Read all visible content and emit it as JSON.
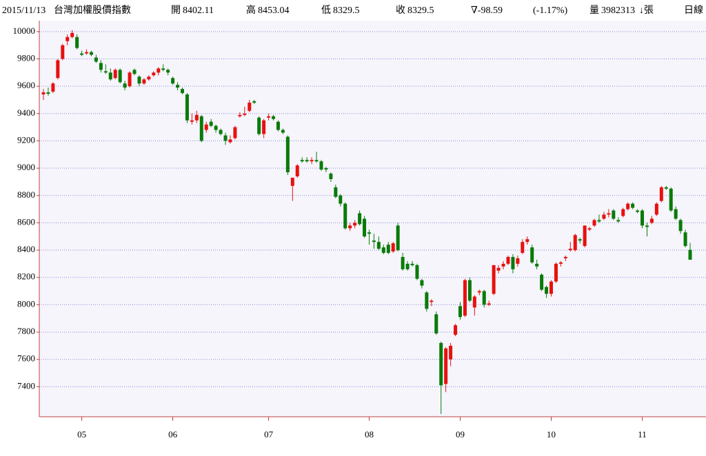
{
  "chart_data": {
    "type": "candlestick",
    "date": "2015/11/13",
    "title": "台灣加權股價指數",
    "stats": [
      {
        "label": "開",
        "value": 8402.11,
        "color": "#007000"
      },
      {
        "label": "高",
        "value": 8453.04,
        "color": "#e00000"
      },
      {
        "label": "低",
        "value": 8329.5,
        "color": "#007000"
      },
      {
        "label": "收",
        "value": 8329.5,
        "color": "#007000"
      }
    ],
    "change": "∇-98.59",
    "change_color": "#007000",
    "change_pct": "(-1.17%)",
    "volume_label": "量",
    "volume": 3982313,
    "volume_unit": "↓張",
    "period": "日線",
    "up_color": "#e81010",
    "down_color": "#0a7a0a",
    "grid": true,
    "ylim": [
      7180,
      10080
    ],
    "yticks": [
      7400,
      7600,
      7800,
      8000,
      8200,
      8400,
      8600,
      8800,
      9000,
      9200,
      9400,
      9600,
      9800,
      10000
    ],
    "xticks": [
      {
        "index": 8,
        "label": "05"
      },
      {
        "index": 27,
        "label": "06"
      },
      {
        "index": 47,
        "label": "07"
      },
      {
        "index": 68,
        "label": "08"
      },
      {
        "index": 87,
        "label": "09"
      },
      {
        "index": 106,
        "label": "10"
      },
      {
        "index": 125,
        "label": "11"
      }
    ],
    "candles": [
      [
        9540,
        9580,
        9500,
        9555
      ],
      [
        9555,
        9590,
        9530,
        9545
      ],
      [
        9560,
        9630,
        9550,
        9620
      ],
      [
        9660,
        9800,
        9650,
        9790
      ],
      [
        9800,
        9910,
        9790,
        9900
      ],
      [
        9930,
        9980,
        9900,
        9960
      ],
      [
        9960,
        10010,
        9950,
        9990
      ],
      [
        9960,
        9980,
        9870,
        9880
      ],
      [
        9840,
        9860,
        9820,
        9830
      ],
      [
        9840,
        9870,
        9830,
        9850
      ],
      [
        9850,
        9860,
        9820,
        9830
      ],
      [
        9810,
        9830,
        9770,
        9780
      ],
      [
        9770,
        9790,
        9700,
        9720
      ],
      [
        9710,
        9760,
        9690,
        9700
      ],
      [
        9700,
        9730,
        9640,
        9650
      ],
      [
        9660,
        9730,
        9650,
        9720
      ],
      [
        9720,
        9730,
        9620,
        9630
      ],
      [
        9620,
        9640,
        9570,
        9590
      ],
      [
        9600,
        9710,
        9590,
        9700
      ],
      [
        9720,
        9730,
        9680,
        9690
      ],
      [
        9670,
        9680,
        9600,
        9620
      ],
      [
        9620,
        9660,
        9610,
        9650
      ],
      [
        9650,
        9680,
        9640,
        9670
      ],
      [
        9680,
        9710,
        9670,
        9700
      ],
      [
        9700,
        9740,
        9680,
        9730
      ],
      [
        9730,
        9760,
        9710,
        9720
      ],
      [
        9720,
        9730,
        9680,
        9700
      ],
      [
        9660,
        9670,
        9610,
        9620
      ],
      [
        9610,
        9630,
        9570,
        9590
      ],
      [
        9580,
        9590,
        9540,
        9550
      ],
      [
        9540,
        9550,
        9330,
        9350
      ],
      [
        9340,
        9400,
        9320,
        9350
      ],
      [
        9350,
        9420,
        9330,
        9390
      ],
      [
        9380,
        9390,
        9190,
        9200
      ],
      [
        9280,
        9340,
        9260,
        9320
      ],
      [
        9340,
        9360,
        9300,
        9310
      ],
      [
        9310,
        9320,
        9260,
        9280
      ],
      [
        9280,
        9290,
        9240,
        9250
      ],
      [
        9240,
        9260,
        9170,
        9200
      ],
      [
        9190,
        9240,
        9180,
        9210
      ],
      [
        9220,
        9310,
        9210,
        9300
      ],
      [
        9380,
        9410,
        9370,
        9390
      ],
      [
        9390,
        9450,
        9380,
        9400
      ],
      [
        9420,
        9500,
        9410,
        9480
      ],
      [
        9490,
        9500,
        9470,
        9480
      ],
      [
        9370,
        9380,
        9240,
        9250
      ],
      [
        9250,
        9360,
        9220,
        9350
      ],
      [
        9370,
        9400,
        9350,
        9380
      ],
      [
        9380,
        9390,
        9350,
        9360
      ],
      [
        9340,
        9350,
        9270,
        9280
      ],
      [
        9280,
        9290,
        9250,
        9260
      ],
      [
        9230,
        9240,
        8950,
        8970
      ],
      [
        8870,
        8930,
        8760,
        8930
      ],
      [
        8940,
        9030,
        8930,
        9020
      ],
      [
        9060,
        9080,
        9040,
        9050
      ],
      [
        9060,
        9080,
        9040,
        9050
      ],
      [
        9050,
        9080,
        9030,
        9060
      ],
      [
        9060,
        9120,
        9040,
        9050
      ],
      [
        9050,
        9060,
        8980,
        8990
      ],
      [
        9000,
        9010,
        8970,
        8990
      ],
      [
        8960,
        8970,
        8900,
        8920
      ],
      [
        8860,
        8880,
        8780,
        8790
      ],
      [
        8800,
        8810,
        8720,
        8740
      ],
      [
        8740,
        8750,
        8550,
        8560
      ],
      [
        8560,
        8600,
        8540,
        8580
      ],
      [
        8580,
        8620,
        8560,
        8600
      ],
      [
        8670,
        8690,
        8580,
        8590
      ],
      [
        8630,
        8650,
        8490,
        8500
      ],
      [
        8530,
        8550,
        8440,
        8520
      ],
      [
        8470,
        8520,
        8410,
        8460
      ],
      [
        8460,
        8500,
        8400,
        8410
      ],
      [
        8420,
        8440,
        8370,
        8380
      ],
      [
        8440,
        8460,
        8370,
        8380
      ],
      [
        8390,
        8460,
        8380,
        8450
      ],
      [
        8580,
        8600,
        8390,
        8400
      ],
      [
        8350,
        8380,
        8250,
        8260
      ],
      [
        8300,
        8320,
        8250,
        8260
      ],
      [
        8300,
        8320,
        8280,
        8290
      ],
      [
        8290,
        8300,
        8180,
        8190
      ],
      [
        8180,
        8190,
        8120,
        8140
      ],
      [
        8090,
        8100,
        7950,
        7970
      ],
      [
        8020,
        8040,
        7990,
        8030
      ],
      [
        7930,
        7950,
        7780,
        7790
      ],
      [
        7720,
        7730,
        7200,
        7410
      ],
      [
        7420,
        7690,
        7360,
        7680
      ],
      [
        7600,
        7720,
        7550,
        7700
      ],
      [
        7780,
        7860,
        7770,
        7850
      ],
      [
        7990,
        8020,
        7890,
        7910
      ],
      [
        7920,
        8190,
        7910,
        8180
      ],
      [
        8180,
        8200,
        8020,
        8030
      ],
      [
        7980,
        8070,
        7920,
        8060
      ],
      [
        8090,
        8110,
        8070,
        8100
      ],
      [
        8100,
        8110,
        7980,
        8000
      ],
      [
        8000,
        8030,
        7990,
        8010
      ],
      [
        8080,
        8290,
        8070,
        8290
      ],
      [
        8250,
        8290,
        8230,
        8270
      ],
      [
        8280,
        8320,
        8260,
        8300
      ],
      [
        8300,
        8360,
        8290,
        8350
      ],
      [
        8350,
        8370,
        8230,
        8260
      ],
      [
        8300,
        8360,
        8280,
        8340
      ],
      [
        8380,
        8480,
        8370,
        8460
      ],
      [
        8460,
        8500,
        8440,
        8480
      ],
      [
        8420,
        8440,
        8300,
        8310
      ],
      [
        8300,
        8330,
        8260,
        8280
      ],
      [
        8220,
        8230,
        8100,
        8110
      ],
      [
        8130,
        8140,
        8050,
        8080
      ],
      [
        8080,
        8180,
        8060,
        8170
      ],
      [
        8170,
        8310,
        8160,
        8300
      ],
      [
        8300,
        8320,
        8280,
        8310
      ],
      [
        8340,
        8360,
        8320,
        8350
      ],
      [
        8400,
        8460,
        8390,
        8410
      ],
      [
        8400,
        8520,
        8390,
        8510
      ],
      [
        8480,
        8490,
        8450,
        8470
      ],
      [
        8430,
        8580,
        8420,
        8580
      ],
      [
        8550,
        8570,
        8540,
        8560
      ],
      [
        8580,
        8630,
        8570,
        8620
      ],
      [
        8620,
        8660,
        8600,
        8610
      ],
      [
        8630,
        8680,
        8620,
        8660
      ],
      [
        8660,
        8700,
        8640,
        8670
      ],
      [
        8690,
        8700,
        8620,
        8630
      ],
      [
        8620,
        8640,
        8600,
        8610
      ],
      [
        8650,
        8710,
        8640,
        8700
      ],
      [
        8700,
        8750,
        8690,
        8740
      ],
      [
        8740,
        8750,
        8700,
        8710
      ],
      [
        8690,
        8700,
        8670,
        8680
      ],
      [
        8690,
        8700,
        8560,
        8580
      ],
      [
        8580,
        8600,
        8500,
        8570
      ],
      [
        8600,
        8650,
        8590,
        8630
      ],
      [
        8660,
        8750,
        8650,
        8740
      ],
      [
        8760,
        8870,
        8750,
        8860
      ],
      [
        8860,
        8870,
        8840,
        8850
      ],
      [
        8850,
        8860,
        8680,
        8690
      ],
      [
        8700,
        8720,
        8620,
        8630
      ],
      [
        8620,
        8630,
        8520,
        8540
      ],
      [
        8530,
        8550,
        8420,
        8430
      ],
      [
        8402.11,
        8453.04,
        8329.5,
        8329.5
      ]
    ]
  }
}
